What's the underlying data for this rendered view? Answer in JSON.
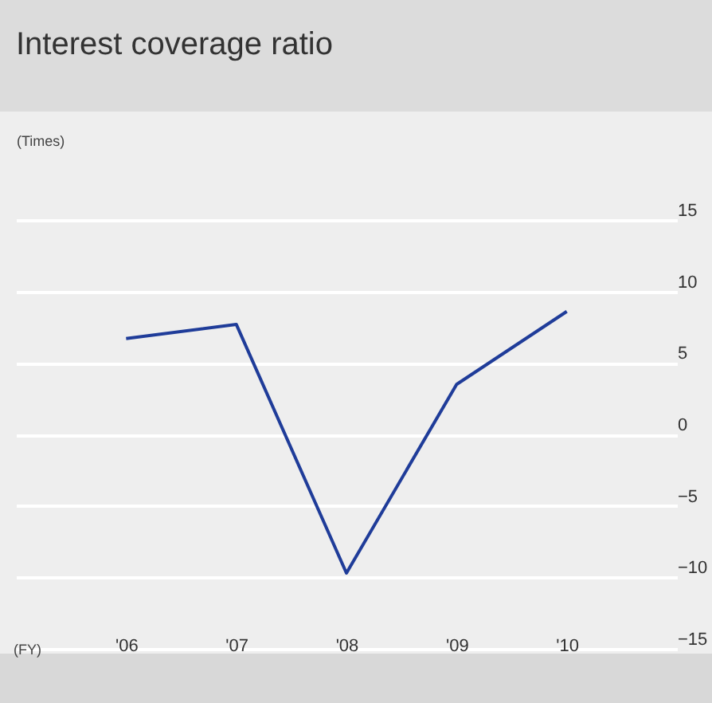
{
  "chart_data": {
    "type": "line",
    "title": "Interest coverage ratio",
    "ylabel": "(Times)",
    "xlabel": "(FY)",
    "categories": [
      "'06",
      "'07",
      "'08",
      "'09",
      "'10"
    ],
    "series": [
      {
        "color": "#1f3c99",
        "values": [
          6.7,
          7.7,
          -9.7,
          3.5,
          8.6
        ]
      }
    ],
    "ylim": [
      -15,
      15
    ],
    "yticks": [
      -15,
      -10,
      -5,
      0,
      5,
      10,
      15
    ],
    "grid": "y",
    "legend": false,
    "marker": "none",
    "line_style": "solid"
  }
}
